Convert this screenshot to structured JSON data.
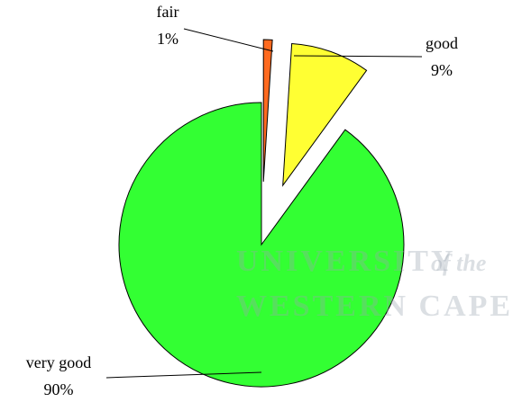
{
  "chart_data": {
    "type": "pie",
    "categories": [
      "fair",
      "good",
      "very good"
    ],
    "values": [
      1,
      9,
      90
    ],
    "value_labels": [
      "1%",
      "9%",
      "90%"
    ],
    "colors": [
      "#ff6a1f",
      "#ffff33",
      "#33ff33"
    ],
    "watermark": [
      "UNIVERSITY",
      "of the",
      "WESTERN CAPE"
    ]
  }
}
